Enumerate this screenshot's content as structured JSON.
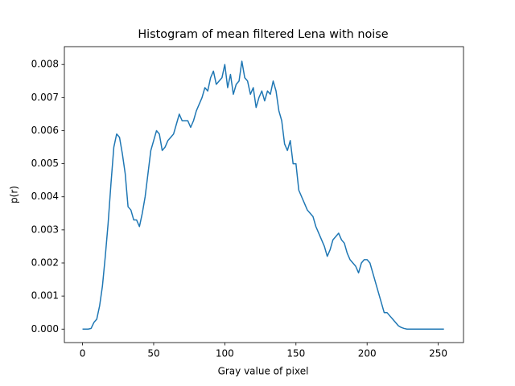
{
  "chart_data": {
    "type": "line",
    "title": "Histogram of mean filtered Lena with noise",
    "x_label": "Gray value of pixel",
    "y_label": "p(r)",
    "x": [
      0,
      2,
      4,
      6,
      8,
      10,
      12,
      14,
      16,
      18,
      20,
      22,
      24,
      26,
      28,
      30,
      32,
      34,
      36,
      38,
      40,
      42,
      44,
      46,
      48,
      50,
      52,
      54,
      56,
      58,
      60,
      62,
      64,
      66,
      68,
      70,
      72,
      74,
      76,
      78,
      80,
      82,
      84,
      86,
      88,
      90,
      92,
      94,
      96,
      98,
      100,
      102,
      104,
      106,
      108,
      110,
      112,
      114,
      116,
      118,
      120,
      122,
      124,
      126,
      128,
      130,
      132,
      134,
      136,
      138,
      140,
      142,
      144,
      146,
      148,
      150,
      152,
      154,
      156,
      158,
      160,
      162,
      164,
      166,
      168,
      170,
      172,
      174,
      176,
      178,
      180,
      182,
      184,
      186,
      188,
      190,
      192,
      194,
      196,
      198,
      200,
      202,
      204,
      206,
      208,
      210,
      212,
      214,
      216,
      218,
      220,
      222,
      224,
      226,
      228,
      230,
      232,
      234,
      236,
      238,
      240,
      242,
      244,
      246,
      248,
      250,
      252,
      254
    ],
    "series": [
      {
        "name": "p(r)",
        "color": "#1f77b4",
        "values": [
          0,
          0,
          0,
          2e-05,
          0.0002,
          0.0003,
          0.0007,
          0.0013,
          0.0022,
          0.0032,
          0.0044,
          0.0055,
          0.0059,
          0.0058,
          0.0053,
          0.0047,
          0.0037,
          0.0036,
          0.0033,
          0.0033,
          0.0031,
          0.0035,
          0.004,
          0.0047,
          0.0054,
          0.0057,
          0.006,
          0.0059,
          0.0054,
          0.0055,
          0.0057,
          0.0058,
          0.0059,
          0.0062,
          0.0065,
          0.0063,
          0.0063,
          0.0063,
          0.0061,
          0.0063,
          0.0066,
          0.0068,
          0.007,
          0.0073,
          0.0072,
          0.0076,
          0.0078,
          0.0074,
          0.0075,
          0.0076,
          0.008,
          0.0073,
          0.0077,
          0.0071,
          0.0074,
          0.0075,
          0.0081,
          0.0076,
          0.0075,
          0.0071,
          0.0073,
          0.0067,
          0.007,
          0.0072,
          0.0069,
          0.0072,
          0.0071,
          0.0075,
          0.0072,
          0.0066,
          0.0063,
          0.0056,
          0.0054,
          0.0057,
          0.005,
          0.005,
          0.0042,
          0.004,
          0.0038,
          0.0036,
          0.0035,
          0.0034,
          0.0031,
          0.0029,
          0.0027,
          0.0025,
          0.0022,
          0.0024,
          0.0027,
          0.0028,
          0.0029,
          0.0027,
          0.0026,
          0.0023,
          0.0021,
          0.002,
          0.0019,
          0.0017,
          0.002,
          0.0021,
          0.0021,
          0.002,
          0.0017,
          0.0014,
          0.0011,
          0.0008,
          0.0005,
          0.0005,
          0.0004,
          0.0003,
          0.0002,
          0.0001,
          5e-05,
          2e-05,
          0,
          0,
          0,
          0,
          0,
          0,
          0,
          0,
          0,
          0,
          0,
          0,
          0,
          0
        ]
      }
    ],
    "xlim": [
      -12.75,
      267.75
    ],
    "ylim": [
      -0.000407,
      0.00854
    ],
    "xticks": [
      0,
      50,
      100,
      150,
      200,
      250
    ],
    "yticks": [
      {
        "value": 0,
        "label": "0.000"
      },
      {
        "value": 0.001,
        "label": "0.001"
      },
      {
        "value": 0.002,
        "label": "0.002"
      },
      {
        "value": 0.003,
        "label": "0.003"
      },
      {
        "value": 0.004,
        "label": "0.004"
      },
      {
        "value": 0.005,
        "label": "0.005"
      },
      {
        "value": 0.006,
        "label": "0.006"
      },
      {
        "value": 0.007,
        "label": "0.007"
      },
      {
        "value": 0.008,
        "label": "0.008"
      }
    ],
    "grid": false
  }
}
